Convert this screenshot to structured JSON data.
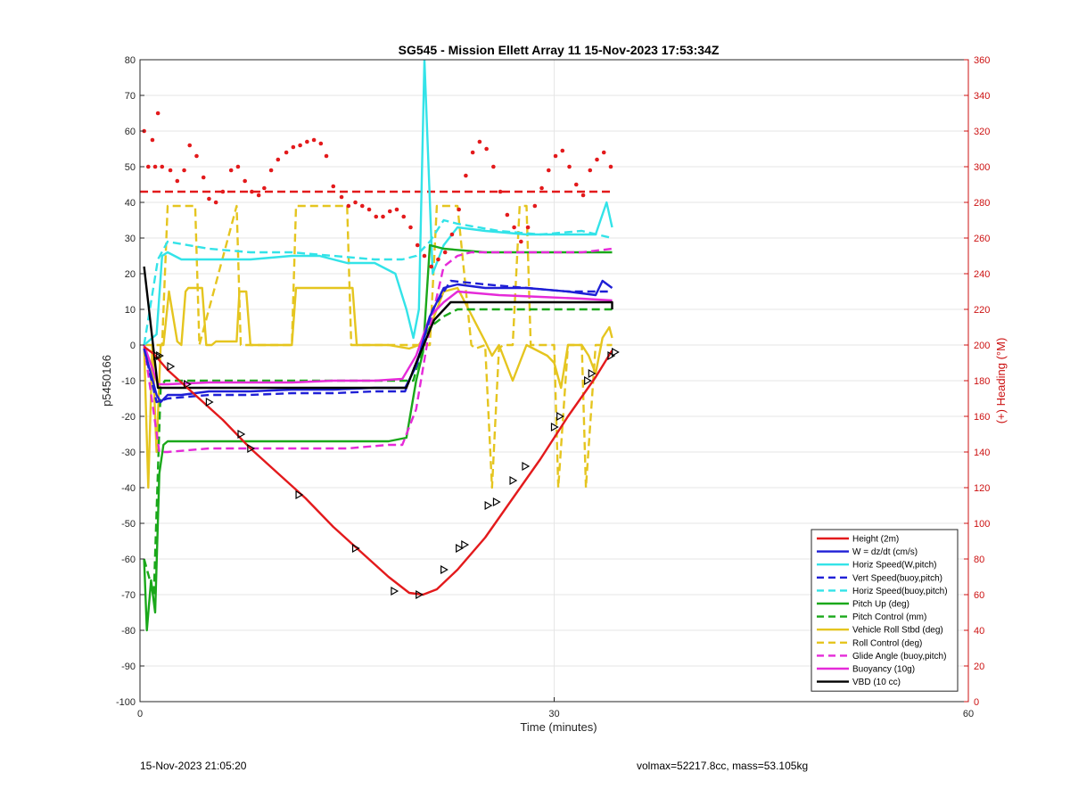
{
  "chart_data": {
    "type": "line",
    "title": "SG545 - Mission Ellett Array 11 15-Nov-2023 17:53:34Z",
    "xlabel": "Time (minutes)",
    "ylabel": "p5450166",
    "ylabel_right": "(+) Heading (°M)",
    "xlim": [
      0,
      60
    ],
    "ylim": [
      -100,
      80
    ],
    "ylim_right": [
      0,
      360
    ],
    "xticks": [
      0,
      30,
      60
    ],
    "yticks": [
      -100,
      -90,
      -80,
      -70,
      -60,
      -50,
      -40,
      -30,
      -20,
      -10,
      0,
      10,
      20,
      30,
      40,
      50,
      60,
      70,
      80
    ],
    "yticks_right": [
      0,
      20,
      40,
      60,
      80,
      100,
      120,
      140,
      160,
      180,
      200,
      220,
      240,
      260,
      280,
      300,
      320,
      340,
      360
    ],
    "grid": true,
    "legend_position": "bottom-right",
    "series": [
      {
        "name": "Height (2m)",
        "color": "#e31a1c",
        "style": "solid",
        "x": [
          0.3,
          1,
          2,
          4,
          6,
          8,
          10,
          12,
          14,
          16,
          18,
          19.5,
          20.5,
          21.5,
          23,
          25,
          27,
          29,
          31,
          33,
          34.2
        ],
        "y": [
          -0.5,
          -2.5,
          -7,
          -14,
          -21,
          -29,
          -36,
          -43,
          -51,
          -58,
          -65,
          -69.5,
          -70,
          -68.5,
          -63,
          -54,
          -43,
          -32,
          -20,
          -9,
          -1.5
        ]
      },
      {
        "name": "W = dz/dt (cm/s)",
        "color": "#1f1fd6",
        "style": "solid",
        "x": [
          0.3,
          1.2,
          1.5,
          2,
          3,
          5,
          8,
          11,
          14,
          17,
          19.2,
          20,
          21,
          22,
          23,
          25,
          28,
          31,
          33,
          33.5,
          34.2
        ],
        "y": [
          -1,
          -14,
          -16,
          -14,
          -14,
          -13,
          -13,
          -12.5,
          -12.5,
          -12,
          -12,
          -6,
          8,
          16,
          17,
          16,
          16,
          15,
          14,
          18,
          16
        ]
      },
      {
        "name": "Horiz Speed(W,pitch)",
        "color": "#33e3e8",
        "style": "solid",
        "x": [
          0.3,
          1.2,
          1.6,
          2,
          3,
          5,
          8,
          11,
          13,
          15,
          17,
          18.5,
          19.3,
          19.8,
          20.2,
          20.6,
          21.2,
          22,
          23,
          25,
          28,
          31,
          33,
          33.8,
          34.2
        ],
        "y": [
          0,
          3,
          25,
          26,
          24,
          24,
          24,
          25,
          25,
          23,
          23,
          20,
          10,
          2,
          10,
          80,
          20,
          28,
          33,
          32,
          31,
          31,
          31,
          40,
          33
        ]
      },
      {
        "name": "Vert Speed(buoy,pitch)",
        "color": "#1f1fd6",
        "style": "dashed",
        "x": [
          0.3,
          1.2,
          2,
          5,
          8,
          11,
          14,
          17,
          19.2,
          20.2,
          21.2,
          22.5,
          25,
          28,
          31,
          34.2
        ],
        "y": [
          -1,
          -16,
          -15,
          -14,
          -14,
          -13.5,
          -13.5,
          -13,
          -13,
          -3,
          10,
          18,
          17,
          16,
          15,
          15
        ]
      },
      {
        "name": "Horiz Speed(buoy,pitch)",
        "color": "#33e3e8",
        "style": "dashed",
        "x": [
          0.3,
          1.3,
          2,
          5,
          8,
          11,
          14,
          17,
          19,
          20,
          21,
          22,
          23,
          26,
          29,
          32,
          34.2
        ],
        "y": [
          0,
          24,
          29,
          27,
          26,
          26,
          25,
          24,
          24,
          25,
          29,
          35,
          34,
          32,
          31,
          32,
          30
        ]
      },
      {
        "name": "Pitch Up (deg)",
        "color": "#1aa81a",
        "style": "solid",
        "x": [
          0.3,
          0.5,
          0.8,
          1.1,
          1.4,
          1.7,
          2,
          3,
          6,
          10,
          14,
          18,
          19.3,
          20,
          20.5,
          21,
          22,
          25,
          28,
          31,
          34.2
        ],
        "y": [
          -60,
          -80,
          -66,
          -75,
          -36,
          -28,
          -27,
          -27,
          -27,
          -27,
          -27,
          -27,
          -26,
          -10,
          -2,
          28,
          27,
          26,
          26,
          26,
          26
        ]
      },
      {
        "name": "Pitch Control (mm)",
        "color": "#1aa81a",
        "style": "dashed",
        "x": [
          0.3,
          1,
          1.5,
          1.8,
          2,
          19.8,
          20,
          21,
          22,
          23,
          34.2
        ],
        "y": [
          -60,
          -70,
          -12,
          -10,
          -10,
          -10,
          -7,
          5,
          8,
          10,
          10
        ]
      },
      {
        "name": "Vehicle Roll Stbd (deg)",
        "color": "#e5c51f",
        "style": "solid",
        "x": [
          0.3,
          0.6,
          0.9,
          1.2,
          1.5,
          1.7,
          2.1,
          2.7,
          3,
          3.3,
          3.5,
          4.5,
          4.8,
          5.2,
          5.5,
          7,
          7.2,
          7.7,
          8,
          11,
          11.3,
          15.4,
          15.7,
          18,
          19.5,
          20.2,
          21,
          22,
          23,
          25,
          25.5,
          26,
          27,
          28,
          29.5,
          30,
          30.5,
          31,
          32,
          32.5,
          33,
          33.5,
          34,
          34.2
        ],
        "y": [
          0,
          -40,
          0,
          -30,
          0,
          0,
          15,
          1,
          0,
          15,
          16,
          16,
          0,
          0,
          1,
          1,
          15,
          15,
          0,
          0,
          16,
          16,
          0,
          0,
          -1,
          0,
          5,
          15,
          16,
          1,
          -3,
          0,
          -10,
          0,
          -3,
          -5,
          -12,
          0,
          0,
          -3,
          -8,
          2,
          5,
          2
        ]
      },
      {
        "name": "Roll Control (deg)",
        "color": "#e5c51f",
        "style": "dashed",
        "x": [
          0.3,
          1.2,
          1.6,
          2,
          4,
          4.3,
          7,
          7.3,
          9,
          9.3,
          11,
          11.3,
          15,
          15.3,
          18,
          21,
          21.5,
          23,
          24,
          24.3,
          25,
          25.5,
          26,
          26.3,
          27,
          27.5,
          28,
          28.3,
          29,
          30,
          30.3,
          31,
          32,
          32.3,
          33,
          33.5,
          34.2
        ],
        "y": [
          0,
          0,
          0,
          39,
          39,
          0,
          39,
          0,
          0,
          0,
          0,
          39,
          39,
          0,
          0,
          0,
          39,
          39,
          0,
          -1,
          0,
          -40,
          -1,
          0,
          0,
          39,
          39,
          0,
          0,
          0,
          -40,
          0,
          0,
          -40,
          0,
          0,
          0
        ]
      },
      {
        "name": "Glide Angle (buoy,pitch)",
        "color": "#e52ad8",
        "style": "dashed",
        "x": [
          0.3,
          1.4,
          2,
          5,
          10,
          15,
          18,
          19,
          20,
          21,
          22,
          23,
          24,
          26,
          29,
          32,
          34.2
        ],
        "y": [
          0,
          -30,
          -30,
          -29,
          -29,
          -29,
          -28,
          -28,
          -18,
          5,
          22,
          25,
          26,
          26,
          26,
          26,
          27
        ]
      },
      {
        "name": "Buoyancy (10g)",
        "color": "#e52ad8",
        "style": "solid",
        "x": [
          0.3,
          1.3,
          2,
          5,
          8,
          11,
          14,
          17,
          19,
          20,
          21,
          22,
          23,
          26,
          29,
          32,
          34.2
        ],
        "y": [
          0,
          -11,
          -11,
          -10.5,
          -10.5,
          -10.5,
          -10,
          -10,
          -9.5,
          -3,
          8,
          12,
          15,
          14,
          13.5,
          13,
          12.5
        ]
      },
      {
        "name": "VBD (10 cc)",
        "color": "#000000",
        "style": "solid",
        "x": [
          0.3,
          1.3,
          2,
          19.3,
          20,
          21.3,
          22.5,
          34.2,
          34.2
        ],
        "y": [
          22,
          -12,
          -12,
          -12,
          -5,
          7,
          12,
          12,
          10
        ]
      }
    ],
    "heading": {
      "name": "(+) Heading (°M)",
      "color": "#e31a1c",
      "axis": "right",
      "x": [
        0.3,
        0.6,
        0.9,
        1.1,
        1.3,
        1.6,
        2.2,
        2.7,
        3.2,
        3.6,
        4.1,
        4.6,
        5,
        5.5,
        6,
        6.6,
        7.1,
        7.6,
        8.1,
        8.6,
        9,
        9.5,
        10,
        10.6,
        11.1,
        11.6,
        12.1,
        12.6,
        13.1,
        13.5,
        14,
        14.6,
        15.1,
        15.6,
        16.1,
        16.6,
        17.1,
        17.6,
        18.1,
        18.6,
        19.1,
        19.6,
        20.1,
        20.6,
        21.1,
        21.6,
        22.1,
        22.6,
        23.1,
        23.6,
        24.1,
        24.6,
        25.1,
        25.6,
        26.1,
        26.6,
        27.1,
        27.6,
        28.1,
        28.6,
        29.1,
        29.6,
        30.1,
        30.6,
        31.1,
        31.6,
        32.1,
        32.6,
        33.1,
        33.6,
        34.1
      ],
      "y": [
        320,
        300,
        315,
        300,
        330,
        300,
        298,
        292,
        298,
        312,
        306,
        294,
        282,
        280,
        286,
        298,
        300,
        292,
        286,
        284,
        288,
        298,
        304,
        308,
        311,
        312,
        314,
        315,
        313,
        306,
        289,
        283,
        278,
        280,
        278,
        276,
        272,
        272,
        275,
        276,
        272,
        266,
        256,
        250,
        244,
        248,
        252,
        262,
        276,
        295,
        308,
        314,
        310,
        300,
        286,
        273,
        266,
        258,
        266,
        278,
        288,
        298,
        306,
        309,
        300,
        290,
        284,
        298,
        304,
        308,
        300
      ]
    },
    "heading_mean": {
      "color": "#e31a1c",
      "style": "dashed",
      "y": 286
    },
    "markers": {
      "color": "#000000",
      "x": [
        1.2,
        1.4,
        2.2,
        3.4,
        5,
        7.3,
        8,
        11.5,
        15.6,
        18.4,
        20.2,
        22,
        23.1,
        23.5,
        25.2,
        25.8,
        27,
        27.9,
        30,
        30.4,
        32.4,
        32.7,
        34.1,
        34.4
      ],
      "y": [
        -3,
        -3,
        -6,
        -11,
        -16,
        -25,
        -29,
        -42,
        -57,
        -69,
        -70,
        -63,
        -57,
        -56,
        -45,
        -44,
        -38,
        -34,
        -23,
        -20,
        -10,
        -8,
        -3,
        -2
      ]
    }
  },
  "footer": {
    "date": "15-Nov-2023 21:05:20",
    "info": "volmax=52217.8cc, mass=53.105kg"
  }
}
